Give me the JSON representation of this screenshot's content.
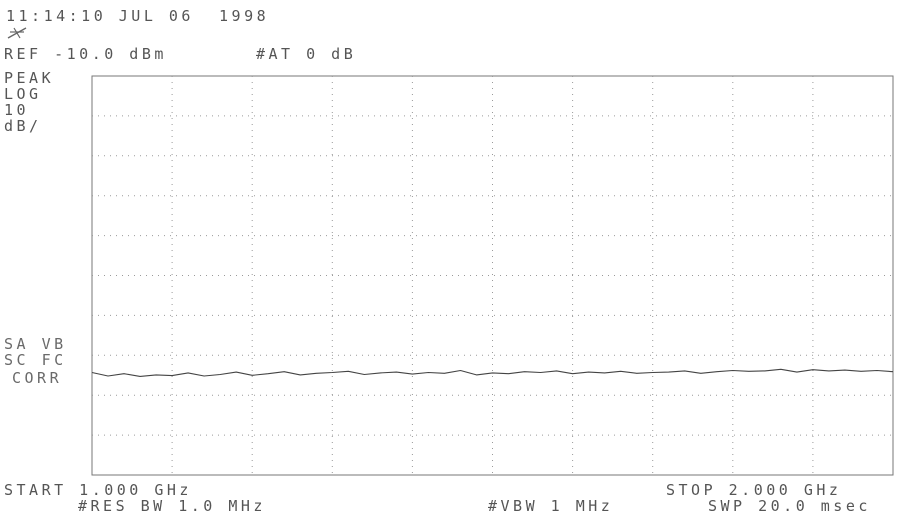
{
  "header": {
    "timestamp": "11:14:10 JUL 06  1998",
    "marker_icon": "star-trigger-icon",
    "ref_level": "REF -10.0 dBm",
    "attenuation": "#AT 0 dB"
  },
  "left_annotations": {
    "detector": "PEAK",
    "scale_type": "LOG",
    "scale_value": "10",
    "scale_unit": "dB/",
    "sa_vb": "SA VB",
    "sc_fc": "SC FC",
    "corr": "CORR"
  },
  "footer": {
    "start": "START 1.000 GHz",
    "stop": "STOP 2.000 GHz",
    "res_bw": "#RES BW 1.0 MHz",
    "vbw": "#VBW 1 MHz",
    "sweep": "SWP 20.0 msec"
  },
  "chart_data": {
    "type": "line",
    "title": "",
    "xlabel": "",
    "ylabel": "",
    "x_unit": "GHz",
    "y_unit": "dBm",
    "xlim": [
      1.0,
      2.0
    ],
    "ylim": [
      -110,
      -10
    ],
    "grid": true,
    "x_divisions": 10,
    "y_divisions": 10,
    "series": [
      {
        "x": [
          1.0,
          1.02,
          1.04,
          1.06,
          1.08,
          1.1,
          1.12,
          1.14,
          1.16,
          1.18,
          1.2,
          1.22,
          1.24,
          1.26,
          1.28,
          1.3,
          1.32,
          1.34,
          1.36,
          1.38,
          1.4,
          1.42,
          1.44,
          1.46,
          1.48,
          1.5,
          1.52,
          1.54,
          1.56,
          1.58,
          1.6,
          1.62,
          1.64,
          1.66,
          1.68,
          1.7,
          1.72,
          1.74,
          1.76,
          1.78,
          1.8,
          1.82,
          1.84,
          1.86,
          1.88,
          1.9,
          1.92,
          1.94,
          1.96,
          1.98,
          2.0
        ],
        "values": [
          -84.3,
          -85.2,
          -84.6,
          -85.3,
          -84.9,
          -85.1,
          -84.4,
          -85.2,
          -84.8,
          -84.2,
          -85.0,
          -84.6,
          -84.1,
          -84.9,
          -84.5,
          -84.3,
          -84.0,
          -84.8,
          -84.4,
          -84.2,
          -84.7,
          -84.3,
          -84.5,
          -83.8,
          -84.9,
          -84.4,
          -84.6,
          -84.1,
          -84.3,
          -83.9,
          -84.6,
          -84.2,
          -84.4,
          -84.0,
          -84.5,
          -84.3,
          -84.2,
          -83.9,
          -84.5,
          -84.1,
          -83.8,
          -84.0,
          -83.9,
          -83.5,
          -84.2,
          -83.6,
          -83.9,
          -83.7,
          -84.0,
          -83.8,
          -84.1
        ]
      }
    ]
  }
}
